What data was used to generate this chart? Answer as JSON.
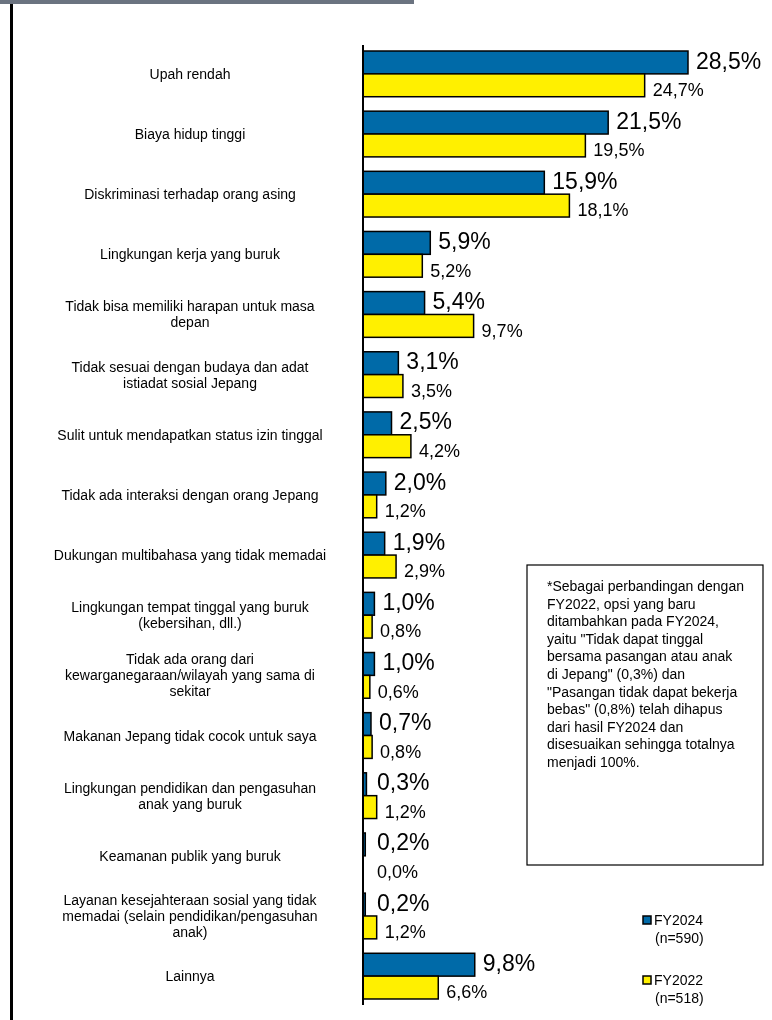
{
  "chart_data": {
    "type": "bar",
    "orientation": "horizontal",
    "legend": "bottom right",
    "categories": [
      "Upah rendah",
      "Biaya hidup tinggi",
      "Diskriminasi terhadap orang asing",
      "Lingkungan kerja yang buruk",
      "Tidak bisa memiliki harapan untuk masa depan",
      "Tidak sesuai dengan budaya dan adat istiadat sosial Jepang",
      "Sulit untuk mendapatkan status izin tinggal",
      "Tidak ada interaksi dengan orang Jepang",
      "Dukungan multibahasa yang tidak memadai",
      "Lingkungan tempat tinggal yang buruk (kebersihan, dll.)",
      "Tidak ada orang dari kewarganegaraan/wilayah yang sama di sekitar",
      "Makanan Jepang tidak cocok untuk saya",
      "Lingkungan pendidikan dan pengasuhan anak yang buruk",
      "Keamanan publik yang buruk",
      "Layanan kesejahteraan sosial yang tidak memadai (selain pendidikan/pengasuhan anak)",
      "Lainnya"
    ],
    "series": [
      {
        "name": "FY2024 (n=590)",
        "color": "#006aa8",
        "values": [
          28.5,
          21.5,
          15.9,
          5.9,
          5.4,
          3.1,
          2.5,
          2.0,
          1.9,
          1.0,
          1.0,
          0.7,
          0.3,
          0.2,
          0.2,
          9.8
        ],
        "value_labels": [
          "28,5%",
          "21,5%",
          "15,9%",
          "5,9%",
          "5,4%",
          "3,1%",
          "2,5%",
          "2,0%",
          "1,9%",
          "1,0%",
          "1,0%",
          "0,7%",
          "0,3%",
          "0,2%",
          "0,2%",
          "9,8%"
        ]
      },
      {
        "name": "FY2022 (n=518)",
        "color": "#fff000",
        "values": [
          24.7,
          19.5,
          18.1,
          5.2,
          9.7,
          3.5,
          4.2,
          1.2,
          2.9,
          0.8,
          0.6,
          0.8,
          1.2,
          0.0,
          1.2,
          6.6
        ],
        "value_labels": [
          "24,7%",
          "19,5%",
          "18,1%",
          "5,2%",
          "9,7%",
          "3,5%",
          "4,2%",
          "1,2%",
          "2,9%",
          "0,8%",
          "0,6%",
          "0,8%",
          "1,2%",
          "0,0%",
          "1,2%",
          "6,6%"
        ]
      }
    ],
    "annotations": [
      "*Sebagai perbandingan dengan FY2022, opsi yang baru ditambahkan pada FY2024, yaitu \"Tidak dapat tinggal bersama pasangan atau anak di Jepang\" (0,3%) dan \"Pasangan tidak dapat bekerja bebas\" (0,8%) telah dihapus dari hasil FY2024 dan disesuaikan sehingga totalnya menjadi 100%."
    ]
  }
}
